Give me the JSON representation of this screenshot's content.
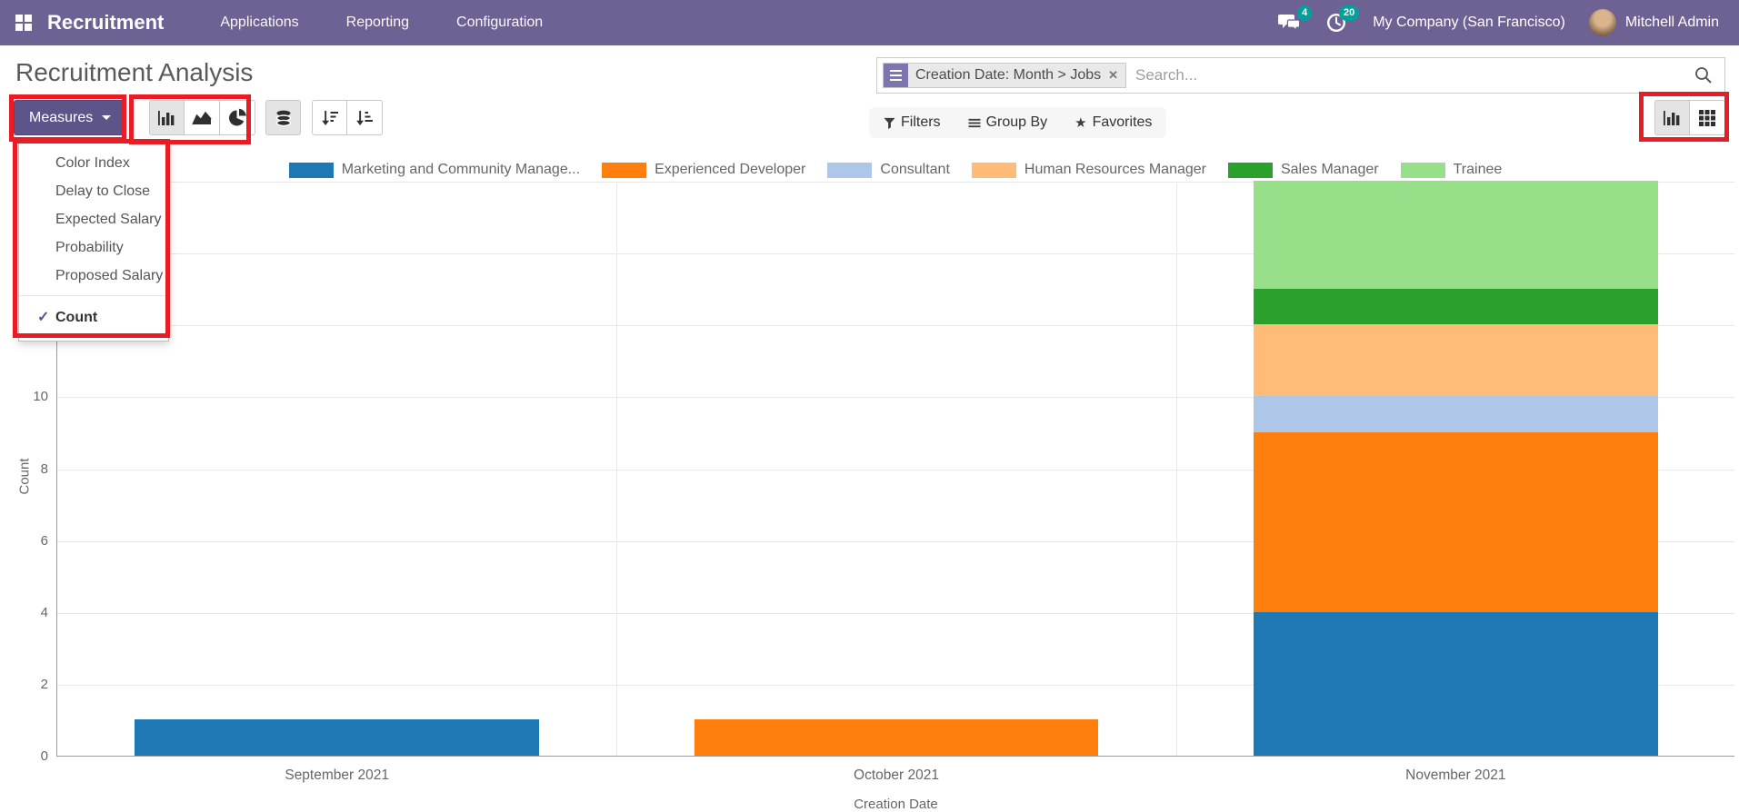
{
  "navbar": {
    "brand": "Recruitment",
    "menus": [
      {
        "label": "Applications"
      },
      {
        "label": "Reporting"
      },
      {
        "label": "Configuration"
      }
    ],
    "messages_badge": "4",
    "activities_badge": "20",
    "company": "My Company (San Francisco)",
    "user": "Mitchell Admin",
    "accent_color": "#6e6294",
    "badge_color": "#00a09d"
  },
  "control_panel": {
    "title": "Recruitment Analysis",
    "measures_button": "Measures",
    "search": {
      "facet": "Creation Date: Month > Jobs",
      "placeholder": "Search..."
    },
    "filters_button": "Filters",
    "groupby_button": "Group By",
    "favorites_button": "Favorites"
  },
  "measures_menu": {
    "items": [
      {
        "label": "Color Index",
        "checked": false
      },
      {
        "label": "Delay to Close",
        "checked": false
      },
      {
        "label": "Expected Salary",
        "checked": false
      },
      {
        "label": "Probability",
        "checked": false
      },
      {
        "label": "Proposed Salary",
        "checked": false
      },
      {
        "label": "Count",
        "checked": true
      }
    ]
  },
  "annotation_color": "#e81c24",
  "chart_data": {
    "type": "bar",
    "stacked": true,
    "title": "",
    "xlabel": "Creation Date",
    "ylabel": "Count",
    "categories": [
      "September 2021",
      "October 2021",
      "November 2021"
    ],
    "series": [
      {
        "name": "Marketing and Community Manage...",
        "color": "#1f77b4",
        "values": [
          1,
          0,
          4
        ]
      },
      {
        "name": "Experienced Developer",
        "color": "#ff7f0e",
        "values": [
          0,
          1,
          5
        ]
      },
      {
        "name": "Consultant",
        "color": "#aec7e8",
        "values": [
          0,
          0,
          1
        ]
      },
      {
        "name": "Human Resources Manager",
        "color": "#ffbb78",
        "values": [
          0,
          0,
          2
        ]
      },
      {
        "name": "Sales Manager",
        "color": "#2ca02c",
        "values": [
          0,
          0,
          1
        ]
      },
      {
        "name": "Trainee",
        "color": "#98df8a",
        "values": [
          0,
          0,
          3
        ]
      }
    ],
    "ylim": [
      0,
      16
    ],
    "yticks": [
      0,
      2,
      4,
      6,
      8,
      10,
      12,
      14,
      16
    ],
    "grid": true,
    "legend_position": "top",
    "bar_width_fraction": 0.241
  }
}
